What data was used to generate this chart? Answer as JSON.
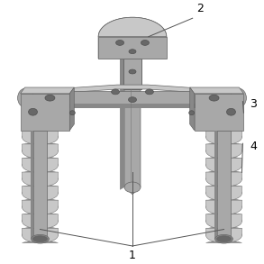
{
  "background_color": "#ffffff",
  "label_1": "1",
  "label_2": "2",
  "label_3": "3",
  "label_4": "4",
  "annotation_color": "#555555",
  "color_light": "#c8c8c8",
  "color_mid": "#a8a8a8",
  "color_dark": "#888888",
  "color_darker": "#686868",
  "color_darkest": "#505050",
  "fig_size": [
    2.93,
    2.93
  ],
  "dpi": 100,
  "font_size": 9
}
